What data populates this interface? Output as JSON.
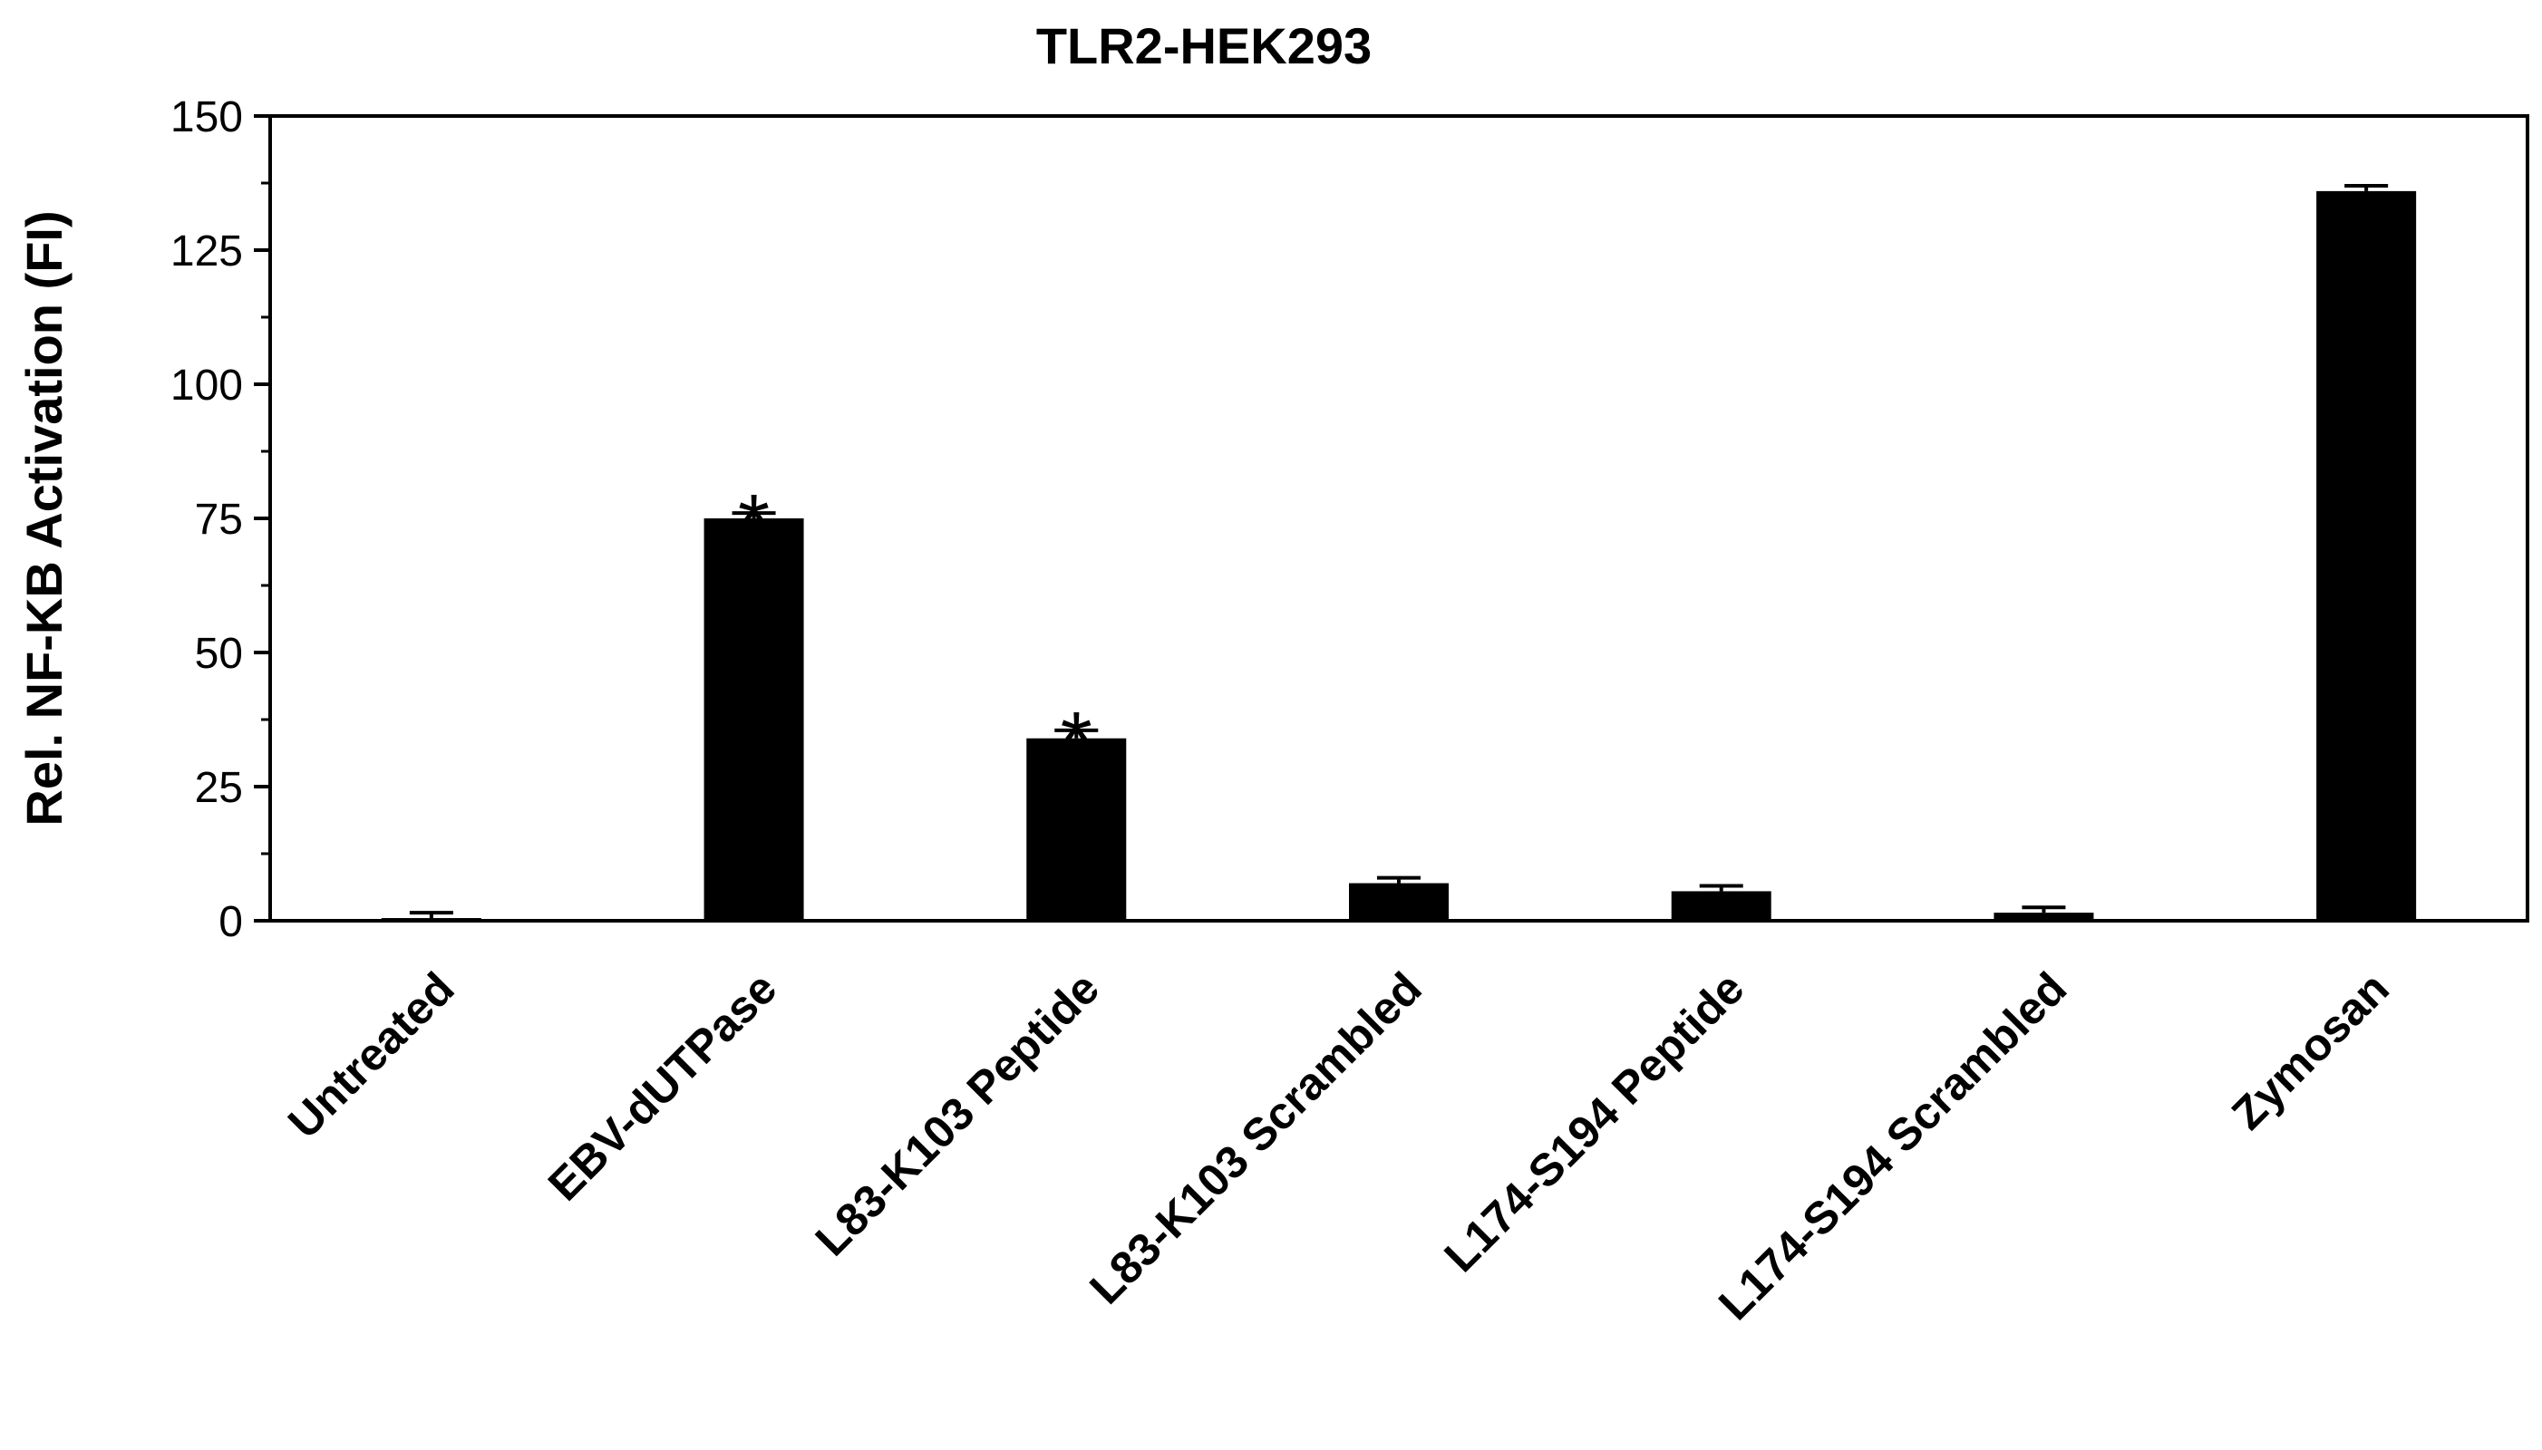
{
  "chart_data": {
    "type": "bar",
    "title": "TLR2-HEK293",
    "ylabel": "Rel. NF-KB Activation (FI)",
    "xlabel": "",
    "ylim": [
      0,
      150
    ],
    "yticks": [
      "0",
      "25",
      "50",
      "75",
      "100",
      "125",
      "150"
    ],
    "categories": [
      "Untreated",
      "EBV-dUTPase",
      "L83-K103 Peptide",
      "L83-K103 Scrambled",
      "L174-S194 Peptide",
      "L174-S194 Scrambled",
      "Zymosan"
    ],
    "values": [
      0.5,
      75,
      34,
      7,
      5.5,
      1.5,
      136
    ],
    "errors": [
      1.0,
      1.0,
      1.5,
      1.0,
      1.0,
      1.0,
      1.0
    ],
    "annotations": [
      "",
      "*",
      "*",
      "",
      "",
      "",
      ""
    ],
    "grid": false,
    "bar_color": "#000000"
  }
}
